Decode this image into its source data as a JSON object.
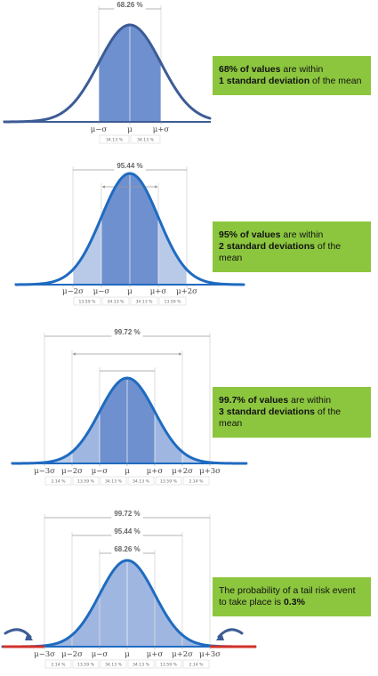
{
  "panels": [
    {
      "span_labels": [
        "68.26 %"
      ],
      "axis_labels": [
        "μ−σ",
        "μ",
        "μ+σ"
      ],
      "pct_labels": [
        "34.13 %",
        "34.13 %"
      ],
      "callout": {
        "strong1": "68% of values",
        "text1": " are within",
        "strong2": "1 standard deviation",
        "text2": " of the mean"
      }
    },
    {
      "span_labels": [
        "95.44 %"
      ],
      "axis_labels": [
        "μ−2σ",
        "μ−σ",
        "μ",
        "μ+σ",
        "μ+2σ"
      ],
      "pct_labels": [
        "13.59 %",
        "34.13 %",
        "34.13 %",
        "13.59 %"
      ],
      "callout": {
        "strong1": "95% of values",
        "text1": " are within",
        "strong2": "2 standard deviations",
        "text2": " of the mean"
      }
    },
    {
      "span_labels": [
        "99.72 %"
      ],
      "axis_labels": [
        "μ−3σ",
        "μ−2σ",
        "μ−σ",
        "μ",
        "μ+σ",
        "μ+2σ",
        "μ+3σ"
      ],
      "pct_labels": [
        "2.14 %",
        "13.59 %",
        "34.13 %",
        "34.13 %",
        "13.59 %",
        "2.14 %"
      ],
      "callout": {
        "strong1": "99.7% of values",
        "text1": " are within",
        "strong2": "3 standard deviations",
        "text2": " of the mean"
      }
    },
    {
      "span_labels": [
        "99.72 %",
        "95.44 %",
        "68.26 %"
      ],
      "axis_labels": [
        "μ−3σ",
        "μ−2σ",
        "μ−σ",
        "μ",
        "μ+σ",
        "μ+2σ",
        "μ+3σ"
      ],
      "pct_labels": [
        "2.14 %",
        "13.59 %",
        "34.13 %",
        "34.13 %",
        "13.59 %",
        "2.14 %"
      ],
      "callout": {
        "strong1": "",
        "text1": "The probability of a tail risk event to take place is ",
        "strong2": "0.3%",
        "text2": ""
      }
    }
  ],
  "colors": {
    "dark_blue": "#3d5c96",
    "curve_blue": "#1f6bc0",
    "fill_inner": "#6f90cf",
    "fill_mid": "#9fb7e0",
    "fill_outer": "#b9cae9",
    "tail_red": "#d2312a",
    "callout_green": "#8cc63e"
  }
}
